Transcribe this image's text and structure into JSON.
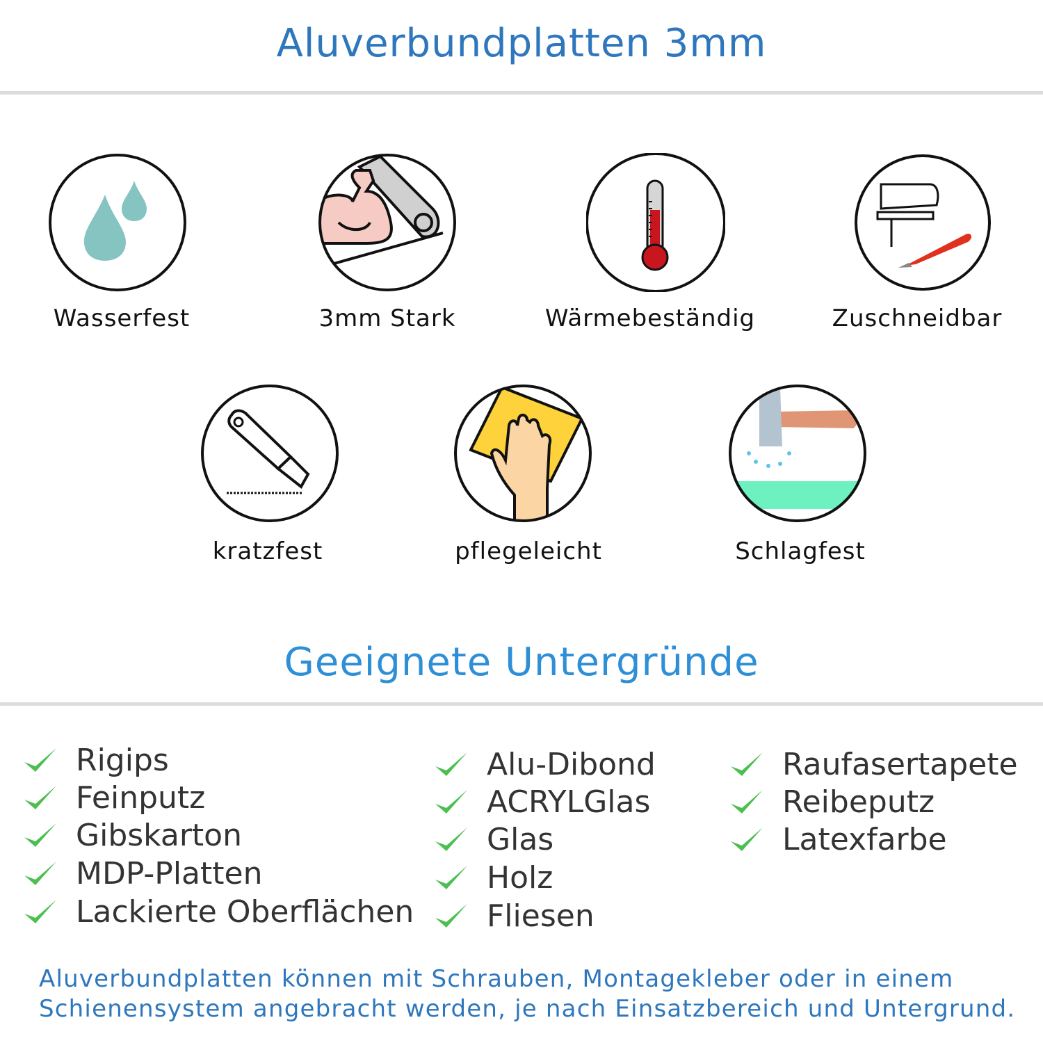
{
  "header": {
    "title": "Aluverbundplatten 3mm",
    "color": "#2e77bd"
  },
  "features": [
    {
      "label": "Wasserfest",
      "icon": "water-drops-icon"
    },
    {
      "label": "3mm Stark",
      "icon": "strong-arm-icon"
    },
    {
      "label": "Wärmebeständig",
      "icon": "thermometer-icon"
    },
    {
      "label": "Zuschneidbar",
      "icon": "jigsaw-icon"
    },
    {
      "label": "kratzfest",
      "icon": "cutter-knife-icon"
    },
    {
      "label": "pflegeleicht",
      "icon": "cleaning-hand-icon"
    },
    {
      "label": "Schlagfest",
      "icon": "hammer-icon"
    }
  ],
  "surfaces": {
    "title": "Geeignete Untergründe",
    "title_color": "#2f8fd6",
    "check_color": "#4cbf50",
    "columns": [
      [
        "Rigips",
        "Feinputz",
        "Gibskarton",
        "MDP-Platten",
        "Lackierte Oberflächen"
      ],
      [
        "Alu-Dibond",
        "ACRYLGlas",
        "Glas",
        "Holz",
        "Fliesen"
      ],
      [
        "Raufasertapete",
        "Reibeputz",
        "Latexfarbe"
      ]
    ]
  },
  "note": {
    "line1": "Aluverbundplatten können mit Schrauben, Montagekleber oder in einem",
    "line2": "Schienensystem angebracht werden, je nach Einsatzbereich und Untergrund."
  }
}
